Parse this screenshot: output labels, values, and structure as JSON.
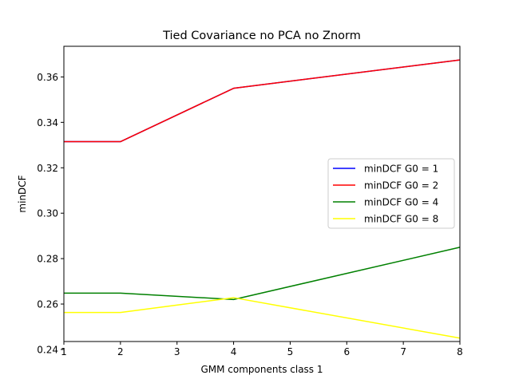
{
  "chart_data": {
    "type": "line",
    "title": "Tied Covariance no PCA no Znorm",
    "xlabel": "GMM components class 1",
    "ylabel": "minDCF",
    "x": [
      1,
      2,
      4,
      8
    ],
    "xlim": [
      1,
      8
    ],
    "ylim": [
      0.2435,
      0.3735
    ],
    "xticks": [
      1,
      2,
      3,
      4,
      5,
      6,
      7,
      8
    ],
    "yticks": [
      0.24,
      0.26,
      0.28,
      0.3,
      0.32,
      0.34,
      0.36
    ],
    "ytick_labels": [
      "0.24",
      "0.26",
      "0.28",
      "0.30",
      "0.32",
      "0.34",
      "0.36"
    ],
    "grid": false,
    "legend_position": "center-right",
    "series": [
      {
        "name": "minDCF G0 = 1",
        "color": "#0000ff",
        "values": [
          0.3315,
          0.3315,
          0.355,
          0.3675
        ]
      },
      {
        "name": "minDCF G0 = 2",
        "color": "#ff0000",
        "values": [
          0.3315,
          0.3315,
          0.355,
          0.3675
        ]
      },
      {
        "name": "minDCF G0 = 4",
        "color": "#008000",
        "values": [
          0.2648,
          0.2648,
          0.262,
          0.285
        ]
      },
      {
        "name": "minDCF G0 = 8",
        "color": "#ffff00",
        "values": [
          0.2563,
          0.2563,
          0.2628,
          0.245
        ]
      }
    ]
  }
}
